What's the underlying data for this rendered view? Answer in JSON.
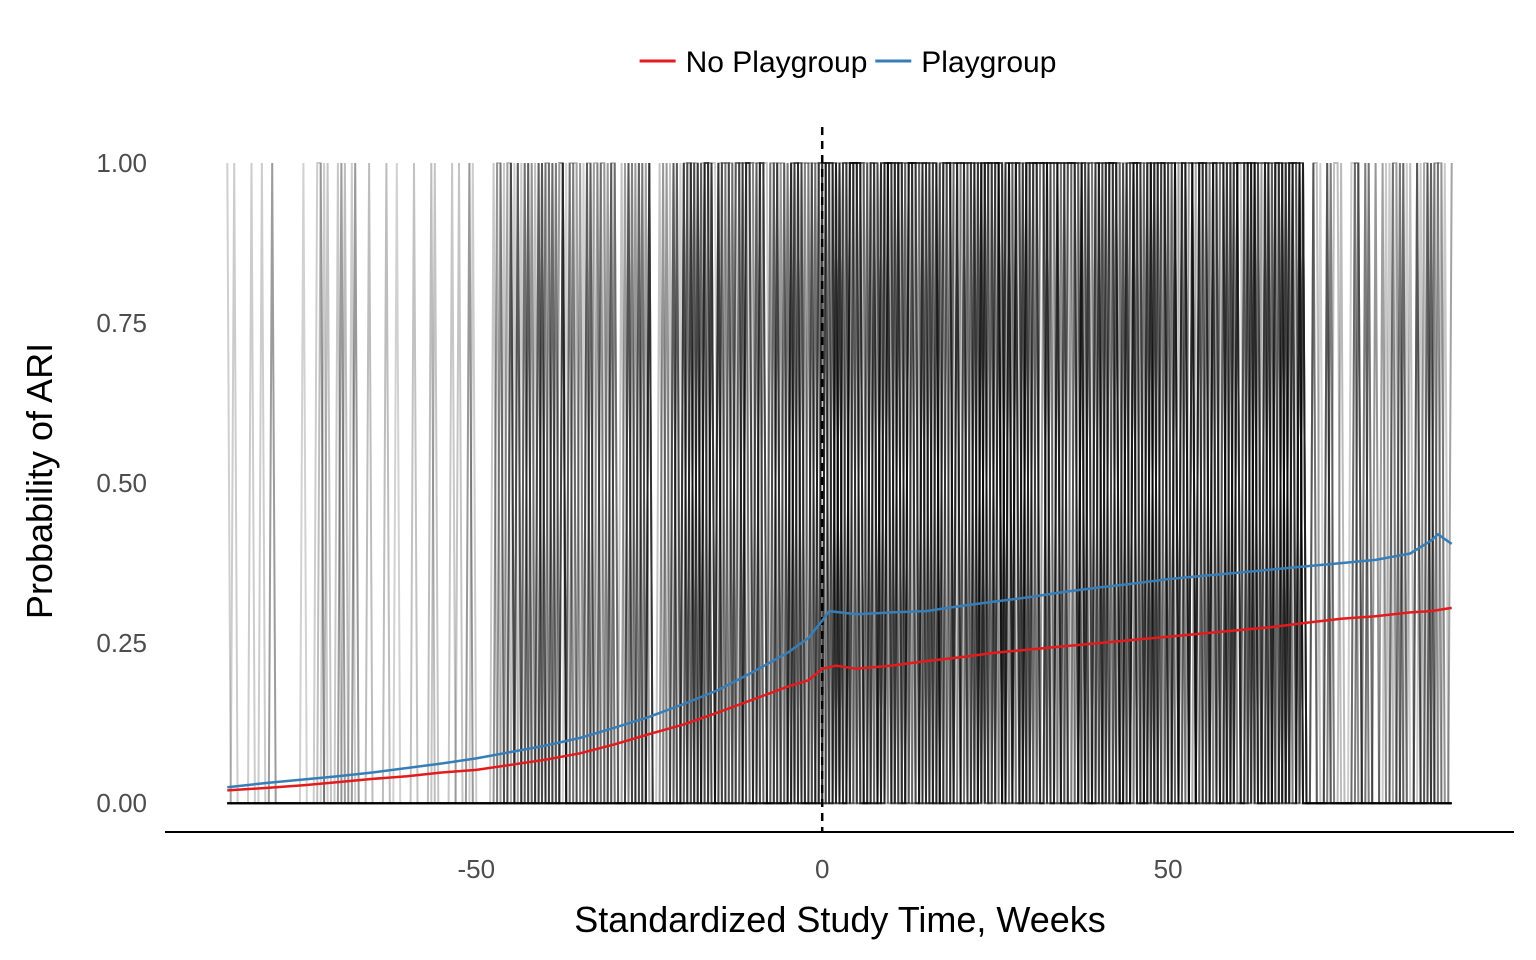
{
  "chart_data": {
    "type": "line",
    "title": "",
    "xlabel": "Standardized Study Time, Weeks",
    "ylabel": "Probability of ARI",
    "xlim": [
      -95,
      100
    ],
    "ylim": [
      -0.045,
      1.05
    ],
    "x_ticks": [
      {
        "value": -50,
        "label": "-50"
      },
      {
        "value": 0,
        "label": "0"
      },
      {
        "value": 50,
        "label": "50"
      }
    ],
    "y_ticks": [
      {
        "value": 0,
        "label": "0.00"
      },
      {
        "value": 0.25,
        "label": "0.25"
      },
      {
        "value": 0.5,
        "label": "0.50"
      },
      {
        "value": 0.75,
        "label": "0.75"
      },
      {
        "value": 1,
        "label": "1.00"
      }
    ],
    "grid": false,
    "legend_position": "top",
    "reference_line": {
      "x": 0,
      "style": "dashed",
      "color": "#000000"
    },
    "background_trajectories": {
      "color": "#000000",
      "x_min": -86,
      "x_max": 91,
      "values": [
        0,
        1
      ]
    },
    "series": [
      {
        "name": "No Playgroup",
        "color": "#e41a1c",
        "points": [
          [
            -86,
            0.02
          ],
          [
            -80,
            0.024
          ],
          [
            -75,
            0.028
          ],
          [
            -70,
            0.033
          ],
          [
            -65,
            0.038
          ],
          [
            -60,
            0.042
          ],
          [
            -55,
            0.048
          ],
          [
            -50,
            0.052
          ],
          [
            -45,
            0.06
          ],
          [
            -40,
            0.068
          ],
          [
            -35,
            0.078
          ],
          [
            -30,
            0.092
          ],
          [
            -25,
            0.108
          ],
          [
            -20,
            0.123
          ],
          [
            -15,
            0.142
          ],
          [
            -10,
            0.162
          ],
          [
            -5,
            0.182
          ],
          [
            -2,
            0.192
          ],
          [
            0,
            0.21
          ],
          [
            2,
            0.215
          ],
          [
            5,
            0.21
          ],
          [
            10,
            0.215
          ],
          [
            15,
            0.222
          ],
          [
            20,
            0.228
          ],
          [
            25,
            0.235
          ],
          [
            30,
            0.24
          ],
          [
            35,
            0.245
          ],
          [
            40,
            0.25
          ],
          [
            45,
            0.255
          ],
          [
            50,
            0.26
          ],
          [
            55,
            0.265
          ],
          [
            60,
            0.27
          ],
          [
            65,
            0.275
          ],
          [
            70,
            0.282
          ],
          [
            75,
            0.288
          ],
          [
            80,
            0.292
          ],
          [
            85,
            0.298
          ],
          [
            88,
            0.3
          ],
          [
            91,
            0.305
          ]
        ]
      },
      {
        "name": "Playgroup",
        "color": "#377eb8",
        "points": [
          [
            -86,
            0.025
          ],
          [
            -80,
            0.032
          ],
          [
            -75,
            0.037
          ],
          [
            -70,
            0.042
          ],
          [
            -65,
            0.048
          ],
          [
            -60,
            0.055
          ],
          [
            -55,
            0.062
          ],
          [
            -50,
            0.07
          ],
          [
            -45,
            0.08
          ],
          [
            -40,
            0.09
          ],
          [
            -35,
            0.102
          ],
          [
            -30,
            0.118
          ],
          [
            -25,
            0.135
          ],
          [
            -20,
            0.155
          ],
          [
            -15,
            0.177
          ],
          [
            -10,
            0.205
          ],
          [
            -5,
            0.235
          ],
          [
            -2,
            0.258
          ],
          [
            0,
            0.285
          ],
          [
            1,
            0.3
          ],
          [
            5,
            0.295
          ],
          [
            10,
            0.298
          ],
          [
            15,
            0.3
          ],
          [
            20,
            0.308
          ],
          [
            25,
            0.315
          ],
          [
            30,
            0.322
          ],
          [
            35,
            0.33
          ],
          [
            40,
            0.337
          ],
          [
            45,
            0.343
          ],
          [
            50,
            0.35
          ],
          [
            55,
            0.355
          ],
          [
            60,
            0.36
          ],
          [
            65,
            0.365
          ],
          [
            70,
            0.37
          ],
          [
            75,
            0.375
          ],
          [
            80,
            0.38
          ],
          [
            85,
            0.39
          ],
          [
            88,
            0.41
          ],
          [
            89,
            0.42
          ],
          [
            91,
            0.405
          ]
        ]
      }
    ]
  }
}
